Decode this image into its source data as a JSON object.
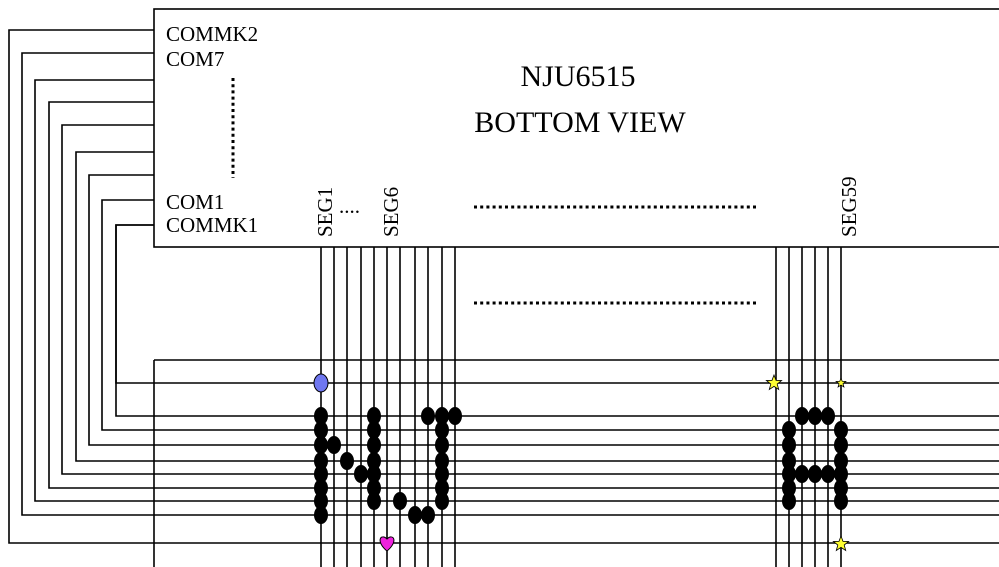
{
  "title": {
    "line1": "NJU6515",
    "line2": "BOTTOM VIEW"
  },
  "com_labels": {
    "commk2": "COMMK2",
    "com7": "COM7",
    "com1": "COM1",
    "commk1": "COMMK1"
  },
  "seg_labels": {
    "seg1": "SEG1",
    "seg6": "SEG6",
    "seg59": "SEG59"
  },
  "ellipsis": "....",
  "colors": {
    "commk_dot": "#6f77f0",
    "heart": "#ee22dd",
    "star": "#ffff33"
  }
}
